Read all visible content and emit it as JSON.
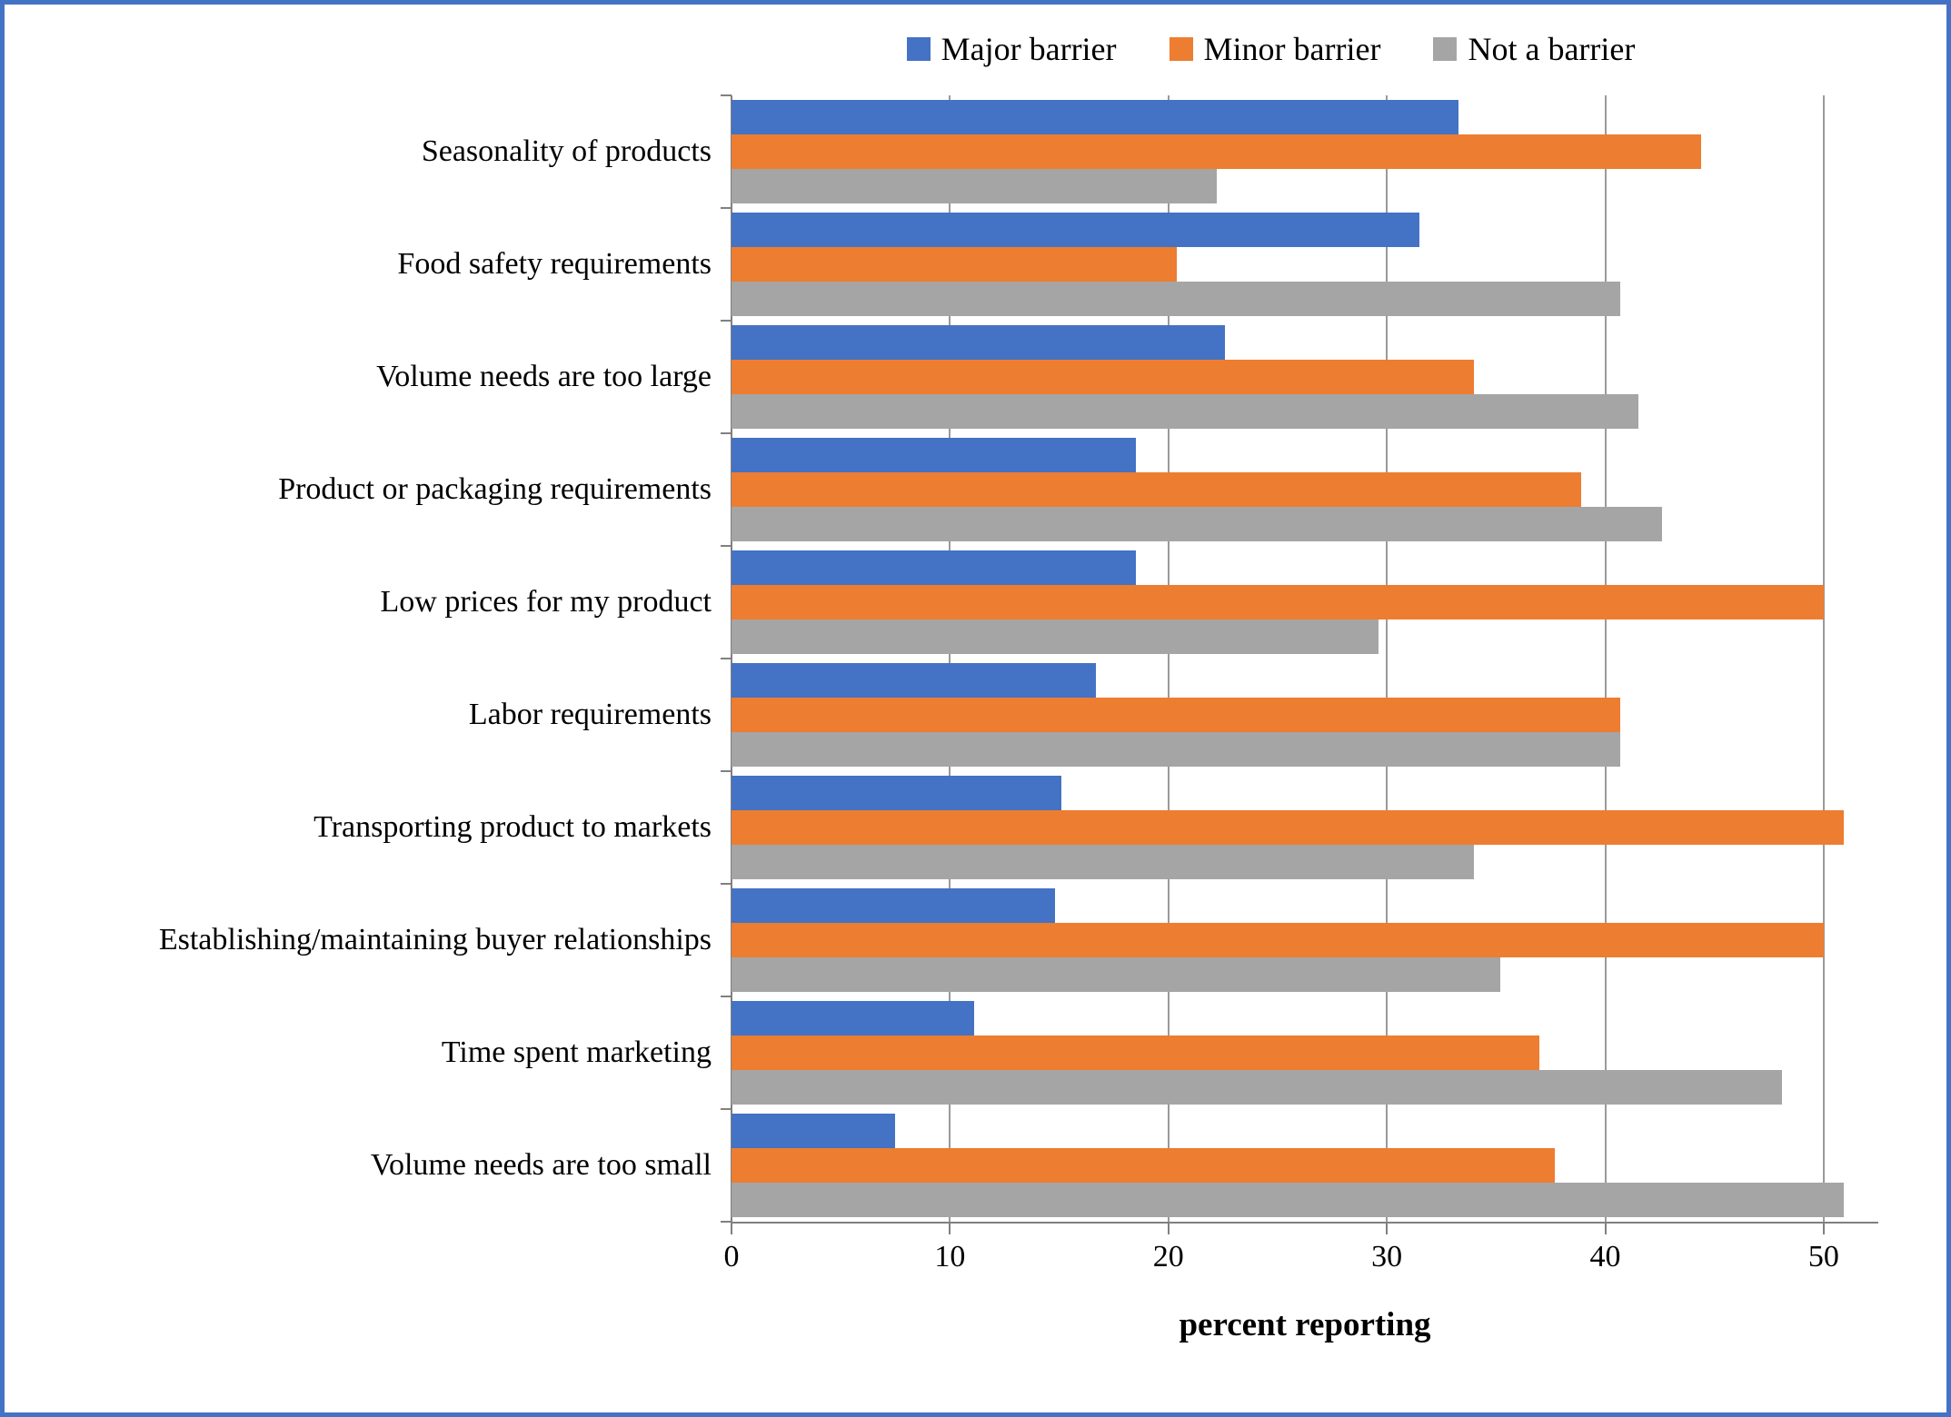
{
  "page": {
    "background": "#ffffff",
    "frame_border_color": "#4472C4"
  },
  "chart_data": {
    "type": "bar",
    "orientation": "horizontal",
    "title": "",
    "xlabel": "percent reporting",
    "ylabel": "",
    "xlim": [
      0,
      52.5
    ],
    "x_ticks": [
      0,
      10,
      20,
      30,
      40,
      50
    ],
    "grid": true,
    "legend_position": "top",
    "gridline_color": "#9a9a9a",
    "axis_color": "#808080",
    "categories": [
      "Seasonality of products",
      "Food safety requirements",
      "Volume needs are too large",
      "Product or packaging requirements",
      "Low prices for my product",
      "Labor requirements",
      "Transporting product to markets",
      "Establishing/maintaining buyer relationships",
      "Time spent marketing",
      "Volume needs are too small"
    ],
    "series": [
      {
        "name": "Major barrier",
        "color": "#4472C4",
        "values": [
          33.3,
          31.5,
          22.6,
          18.5,
          18.5,
          16.7,
          15.1,
          14.8,
          11.1,
          7.5
        ]
      },
      {
        "name": "Minor barrier",
        "color": "#ED7D31",
        "values": [
          44.4,
          20.4,
          34.0,
          38.9,
          50.0,
          40.7,
          50.9,
          50.0,
          37.0,
          37.7
        ]
      },
      {
        "name": "Not a barrier",
        "color": "#A5A5A5",
        "values": [
          22.2,
          40.7,
          41.5,
          42.6,
          29.6,
          40.7,
          34.0,
          35.2,
          48.1,
          50.9
        ]
      }
    ]
  }
}
